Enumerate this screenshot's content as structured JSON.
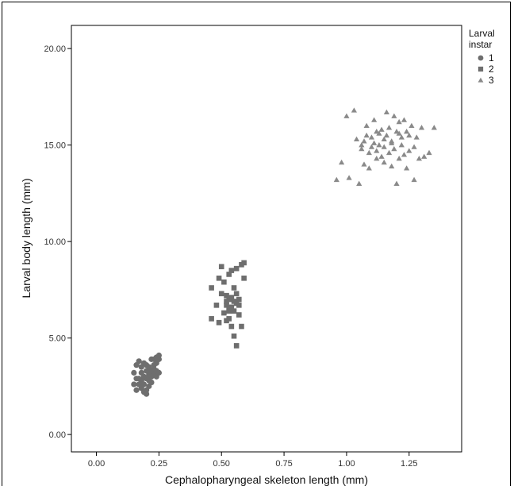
{
  "chart_data": {
    "type": "scatter",
    "xlabel": "Cephalopharyngeal skeleton length (mm)",
    "ylabel": "Larval body length (mm)",
    "xlim": [
      -0.1,
      1.46
    ],
    "ylim": [
      -0.9,
      21.2
    ],
    "x_ticks": [
      "0.00",
      "0.25",
      "0.50",
      "0.75",
      "1.00",
      "1.25"
    ],
    "x_tick_values": [
      0,
      0.25,
      0.5,
      0.75,
      1.0,
      1.25
    ],
    "y_ticks": [
      "0.00",
      "5.00",
      "10.00",
      "15.00",
      "20.00"
    ],
    "y_tick_values": [
      0,
      5,
      10,
      15,
      20
    ],
    "grid": false,
    "legend": {
      "title_lines": [
        "Larval",
        "instar"
      ],
      "placement": "right",
      "entries": [
        "1",
        "2",
        "3"
      ]
    },
    "series": [
      {
        "name": "1",
        "marker": "circle",
        "color": "#6e6e6e",
        "points": [
          [
            0.15,
            2.6
          ],
          [
            0.15,
            3.2
          ],
          [
            0.16,
            2.9
          ],
          [
            0.16,
            3.6
          ],
          [
            0.16,
            2.3
          ],
          [
            0.17,
            3.8
          ],
          [
            0.17,
            2.9
          ],
          [
            0.17,
            2.6
          ],
          [
            0.18,
            2.4
          ],
          [
            0.18,
            3.2
          ],
          [
            0.18,
            3.5
          ],
          [
            0.18,
            2.8
          ],
          [
            0.19,
            2.2
          ],
          [
            0.19,
            2.6
          ],
          [
            0.19,
            3.0
          ],
          [
            0.19,
            3.7
          ],
          [
            0.2,
            2.3
          ],
          [
            0.2,
            2.9
          ],
          [
            0.2,
            3.3
          ],
          [
            0.2,
            2.1
          ],
          [
            0.21,
            2.5
          ],
          [
            0.21,
            2.8
          ],
          [
            0.21,
            3.1
          ],
          [
            0.21,
            3.5
          ],
          [
            0.22,
            3.0
          ],
          [
            0.22,
            3.3
          ],
          [
            0.22,
            3.9
          ],
          [
            0.22,
            2.7
          ],
          [
            0.23,
            3.2
          ],
          [
            0.23,
            3.6
          ],
          [
            0.23,
            3.9
          ],
          [
            0.23,
            3.4
          ],
          [
            0.24,
            3.0
          ],
          [
            0.24,
            3.3
          ],
          [
            0.24,
            3.7
          ],
          [
            0.24,
            4.0
          ],
          [
            0.25,
            3.2
          ],
          [
            0.25,
            3.9
          ],
          [
            0.25,
            4.1
          ],
          [
            0.2,
            3.6
          ]
        ]
      },
      {
        "name": "2",
        "marker": "square",
        "color": "#6e6e6e",
        "points": [
          [
            0.46,
            6.0
          ],
          [
            0.46,
            7.6
          ],
          [
            0.48,
            6.7
          ],
          [
            0.49,
            8.1
          ],
          [
            0.49,
            5.8
          ],
          [
            0.5,
            7.3
          ],
          [
            0.5,
            8.7
          ],
          [
            0.51,
            6.3
          ],
          [
            0.51,
            7.9
          ],
          [
            0.52,
            5.9
          ],
          [
            0.52,
            6.9
          ],
          [
            0.52,
            7.2
          ],
          [
            0.53,
            6.5
          ],
          [
            0.53,
            7.0
          ],
          [
            0.53,
            8.3
          ],
          [
            0.53,
            6.0
          ],
          [
            0.54,
            6.6
          ],
          [
            0.54,
            7.1
          ],
          [
            0.54,
            5.6
          ],
          [
            0.54,
            8.5
          ],
          [
            0.55,
            6.9
          ],
          [
            0.55,
            5.1
          ],
          [
            0.55,
            7.6
          ],
          [
            0.55,
            6.4
          ],
          [
            0.56,
            4.6
          ],
          [
            0.56,
            6.8
          ],
          [
            0.56,
            8.6
          ],
          [
            0.57,
            6.7
          ],
          [
            0.57,
            7.0
          ],
          [
            0.57,
            6.2
          ],
          [
            0.58,
            5.6
          ],
          [
            0.58,
            8.8
          ],
          [
            0.59,
            8.1
          ],
          [
            0.59,
            8.9
          ],
          [
            0.52,
            6.7
          ],
          [
            0.53,
            6.4
          ],
          [
            0.56,
            7.3
          ]
        ]
      },
      {
        "name": "3",
        "marker": "triangle",
        "color": "#8a8a8a",
        "points": [
          [
            0.96,
            13.2
          ],
          [
            0.98,
            14.1
          ],
          [
            1.0,
            16.5
          ],
          [
            1.01,
            13.3
          ],
          [
            1.03,
            16.8
          ],
          [
            1.04,
            15.3
          ],
          [
            1.05,
            13.0
          ],
          [
            1.06,
            14.8
          ],
          [
            1.07,
            15.2
          ],
          [
            1.07,
            14.0
          ],
          [
            1.08,
            15.5
          ],
          [
            1.08,
            16.0
          ],
          [
            1.09,
            14.6
          ],
          [
            1.09,
            13.8
          ],
          [
            1.1,
            15.4
          ],
          [
            1.1,
            14.9
          ],
          [
            1.11,
            16.3
          ],
          [
            1.11,
            15.1
          ],
          [
            1.12,
            14.3
          ],
          [
            1.12,
            14.7
          ],
          [
            1.13,
            15.0
          ],
          [
            1.13,
            15.6
          ],
          [
            1.14,
            14.4
          ],
          [
            1.14,
            15.8
          ],
          [
            1.15,
            15.3
          ],
          [
            1.15,
            14.1
          ],
          [
            1.16,
            16.7
          ],
          [
            1.16,
            15.5
          ],
          [
            1.17,
            14.6
          ],
          [
            1.17,
            15.9
          ],
          [
            1.18,
            15.2
          ],
          [
            1.18,
            13.9
          ],
          [
            1.19,
            16.5
          ],
          [
            1.19,
            14.8
          ],
          [
            1.2,
            15.7
          ],
          [
            1.2,
            13.0
          ],
          [
            1.21,
            16.2
          ],
          [
            1.21,
            14.3
          ],
          [
            1.22,
            15.4
          ],
          [
            1.22,
            15.0
          ],
          [
            1.23,
            14.5
          ],
          [
            1.23,
            16.3
          ],
          [
            1.24,
            13.8
          ],
          [
            1.24,
            15.7
          ],
          [
            1.25,
            14.7
          ],
          [
            1.25,
            15.5
          ],
          [
            1.26,
            16.0
          ],
          [
            1.27,
            13.2
          ],
          [
            1.27,
            14.9
          ],
          [
            1.28,
            15.4
          ],
          [
            1.29,
            14.3
          ],
          [
            1.3,
            15.9
          ],
          [
            1.31,
            14.4
          ],
          [
            1.33,
            14.6
          ],
          [
            1.35,
            15.9
          ],
          [
            1.06,
            15.0
          ],
          [
            1.12,
            15.7
          ],
          [
            1.15,
            14.9
          ],
          [
            1.18,
            15.1
          ],
          [
            1.21,
            15.6
          ]
        ]
      }
    ]
  }
}
